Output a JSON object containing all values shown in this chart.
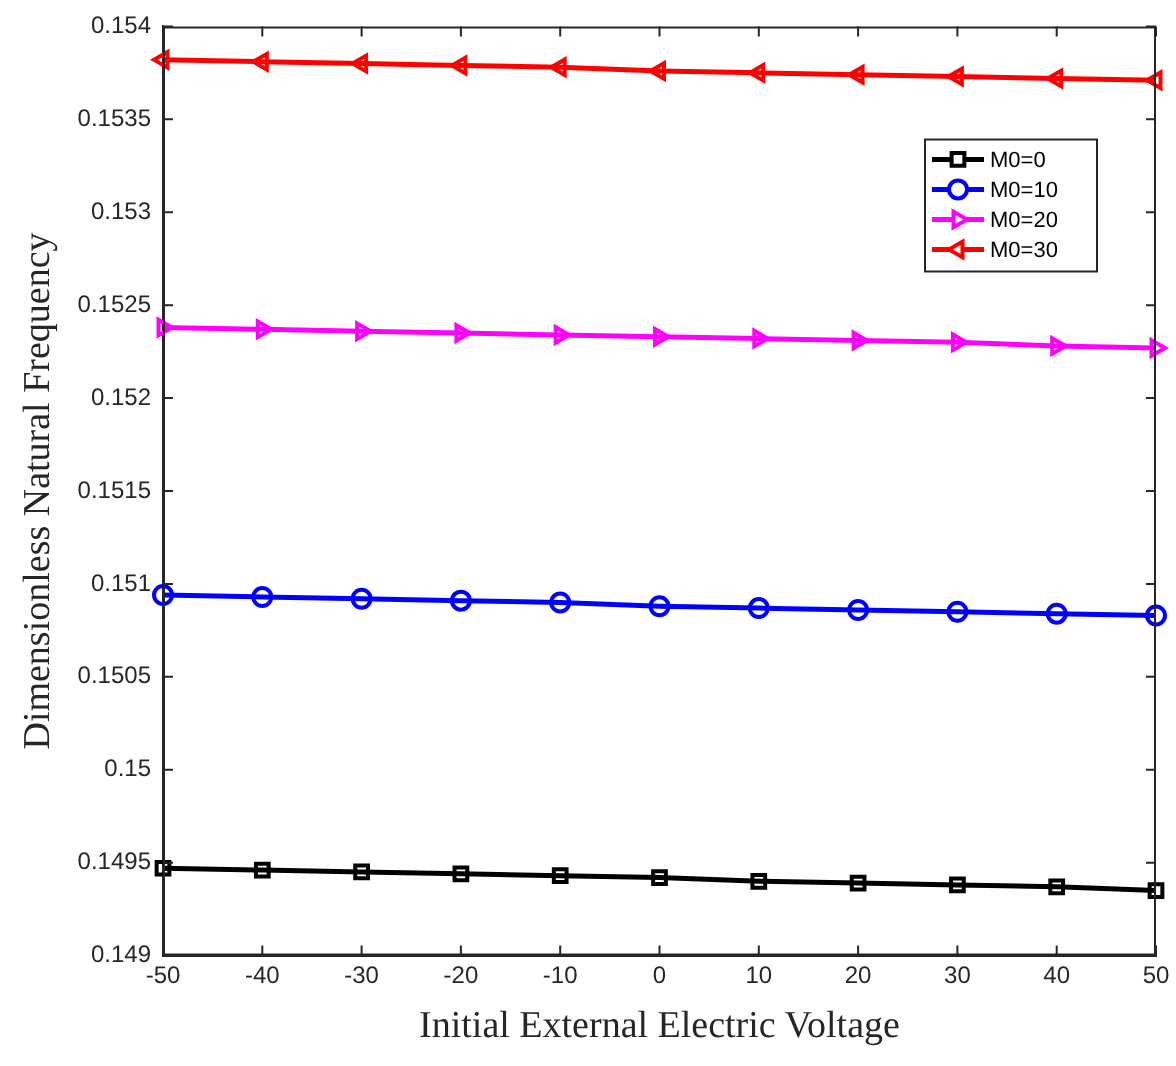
{
  "chart_data": {
    "type": "line",
    "xlabel": "Initial External Electric Voltage",
    "ylabel": "Dimensionless Natural Frequency",
    "x": [
      -50,
      -40,
      -30,
      -20,
      -10,
      0,
      10,
      20,
      30,
      40,
      50
    ],
    "xlim": [
      -50,
      50
    ],
    "xticks": [
      -50,
      -40,
      -30,
      -20,
      -10,
      0,
      10,
      20,
      30,
      40,
      50
    ],
    "ylim": [
      0.149,
      0.154
    ],
    "yticks": [
      0.149,
      0.1495,
      0.15,
      0.1505,
      0.151,
      0.1515,
      0.152,
      0.1525,
      0.153,
      0.1535,
      0.154
    ],
    "grid": false,
    "legend": "top right",
    "line_style": "solid",
    "series": [
      {
        "name": "M0=0",
        "color": "#000000",
        "marker": "square",
        "values": [
          0.14947,
          0.14946,
          0.14945,
          0.14944,
          0.14943,
          0.14942,
          0.1494,
          0.14939,
          0.14938,
          0.14937,
          0.14935
        ]
      },
      {
        "name": "M0=10",
        "color": "#0000ff",
        "marker": "circle",
        "values": [
          0.15094,
          0.15093,
          0.15092,
          0.15091,
          0.1509,
          0.15088,
          0.15087,
          0.15086,
          0.15085,
          0.15084,
          0.15083
        ]
      },
      {
        "name": "M0=20",
        "color": "#ff00ff",
        "marker": "triangle-right",
        "values": [
          0.15238,
          0.15237,
          0.15236,
          0.15235,
          0.15234,
          0.15233,
          0.15232,
          0.15231,
          0.1523,
          0.15228,
          0.15227
        ]
      },
      {
        "name": "M0=30",
        "color": "#ff0000",
        "marker": "triangle-left",
        "values": [
          0.15382,
          0.15381,
          0.1538,
          0.15379,
          0.15378,
          0.15376,
          0.15375,
          0.15374,
          0.15373,
          0.15372,
          0.15371
        ]
      }
    ]
  }
}
